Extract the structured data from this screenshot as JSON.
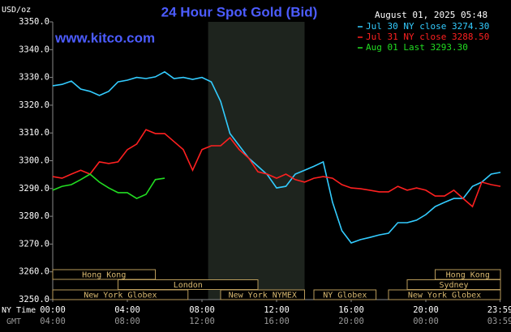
{
  "chart_data": {
    "type": "line",
    "title": "24 Hour Spot Gold (Bid)",
    "timestamp": "August 01, 2025 05:48",
    "watermark": "www.kitco.com",
    "y_label": "USD/oz",
    "x_row_labels": [
      "NY Time",
      "GMT"
    ],
    "x": [
      0,
      0.5,
      1,
      1.5,
      2,
      2.5,
      3,
      3.5,
      4,
      4.5,
      5,
      5.5,
      6,
      6.5,
      7,
      7.5,
      8,
      8.5,
      9,
      9.5,
      10,
      10.5,
      11,
      11.5,
      12,
      12.5,
      13,
      13.5,
      14,
      14.5,
      15,
      15.5,
      16,
      16.5,
      17,
      17.5,
      18,
      18.5,
      19,
      19.5,
      20,
      20.5,
      21,
      21.5,
      22,
      22.5,
      23,
      23.5,
      24
    ],
    "series": [
      {
        "name": "Jul 30 NY close 3274.30",
        "color": "#33ccff",
        "values": [
          3327,
          3327.5,
          3328.7,
          3325.8,
          3325,
          3323.5,
          3325,
          3328.4,
          3329,
          3330,
          3329.6,
          3330.2,
          3332,
          3329.6,
          3330,
          3329.3,
          3330,
          3328.4,
          3321.4,
          3309.8,
          3305.4,
          3301,
          3298,
          3295,
          3290.2,
          3290.8,
          3295.2,
          3296.6,
          3298,
          3299.6,
          3285,
          3274.8,
          3270.4,
          3271.6,
          3272.4,
          3273.3,
          3273.9,
          3277.7,
          3277.7,
          3278.6,
          3280.6,
          3283.5,
          3285,
          3286.4,
          3286.4,
          3290.8,
          3292.3,
          3295.2,
          3295.8
        ]
      },
      {
        "name": "Jul 31 NY close 3288.50",
        "color": "#ff2020",
        "values": [
          3294.3,
          3293.7,
          3295.2,
          3296.6,
          3295.2,
          3299.6,
          3299,
          3299.6,
          3304,
          3306,
          3311.2,
          3309.8,
          3309.8,
          3306.9,
          3304,
          3296.6,
          3304,
          3305.4,
          3305.4,
          3308.3,
          3304,
          3301,
          3296,
          3295.2,
          3293.7,
          3295.2,
          3293.2,
          3292.3,
          3293.7,
          3294.3,
          3293.7,
          3291.4,
          3290.2,
          3289.9,
          3289.4,
          3288.8,
          3288.8,
          3290.8,
          3289.4,
          3290.2,
          3289.4,
          3287.3,
          3287.3,
          3289.4,
          3286.4,
          3283.5,
          3292.3,
          3291.4,
          3290.8
        ]
      },
      {
        "name": "Aug 01 Last 3293.30",
        "color": "#22dd22",
        "values": [
          3289.4,
          3290.8,
          3291.4,
          3293.2,
          3295.2,
          3292.3,
          3290.2,
          3288.5,
          3288.5,
          3286.4,
          3287.9,
          3293.2,
          3293.7,
          null,
          null,
          null,
          null,
          null,
          null,
          null,
          null,
          null,
          null,
          null,
          null,
          null,
          null,
          null,
          null,
          null,
          null,
          null,
          null,
          null,
          null,
          null,
          null,
          null,
          null,
          null,
          null,
          null,
          null,
          null,
          null,
          null,
          null,
          null,
          null
        ]
      }
    ],
    "xlim": [
      0,
      24
    ],
    "xticks": [
      {
        "value": 0,
        "label": "00:00"
      },
      {
        "value": 4,
        "label": "04:00"
      },
      {
        "value": 8,
        "label": "08:00"
      },
      {
        "value": 12,
        "label": "12:00"
      },
      {
        "value": 16,
        "label": "16:00"
      },
      {
        "value": 20,
        "label": "20:00"
      },
      {
        "value": 23.98,
        "label": "23:59"
      }
    ],
    "gmt_ticks": [
      {
        "value": 0,
        "label": "04:00"
      },
      {
        "value": 4,
        "label": "08:00"
      },
      {
        "value": 8,
        "label": "12:00"
      },
      {
        "value": 12,
        "label": "16:00"
      },
      {
        "value": 16,
        "label": "20:00"
      },
      {
        "value": 20,
        "label": "00:00"
      },
      {
        "value": 23.98,
        "label": "03:59"
      }
    ],
    "ylim": [
      3250,
      3350
    ],
    "yticks": [
      {
        "value": 3250,
        "label": "3250.0"
      },
      {
        "value": 3260,
        "label": "3260.0"
      },
      {
        "value": 3270,
        "label": "3270.0"
      },
      {
        "value": 3280,
        "label": "3280.0"
      },
      {
        "value": 3290,
        "label": "3290.0"
      },
      {
        "value": 3300,
        "label": "3300.0"
      },
      {
        "value": 3310,
        "label": "3310.0"
      },
      {
        "value": 3320,
        "label": "3320.0"
      },
      {
        "value": 3330,
        "label": "3330.0"
      },
      {
        "value": 3340,
        "label": "3340.0"
      },
      {
        "value": 3350,
        "label": "3350.0"
      }
    ],
    "highlight": [
      8.33,
      13.5
    ],
    "session_rows": [
      [
        {
          "label": "Hong Kong",
          "start": 0,
          "end": 5.5
        },
        {
          "label": "Hong Kong",
          "start": 20.5,
          "end": 24
        }
      ],
      [
        {
          "label": "London",
          "start": 3.5,
          "end": 11
        },
        {
          "label": "Sydney",
          "start": 19,
          "end": 24
        }
      ],
      [
        {
          "label": "New York Globex",
          "start": 0,
          "end": 7.25
        },
        {
          "label": "New York NYMEX",
          "start": 9,
          "end": 13.5
        },
        {
          "label": "NY Globex",
          "start": 14,
          "end": 17.33
        },
        {
          "label": "New York Globex",
          "start": 18,
          "end": 24
        }
      ]
    ]
  }
}
